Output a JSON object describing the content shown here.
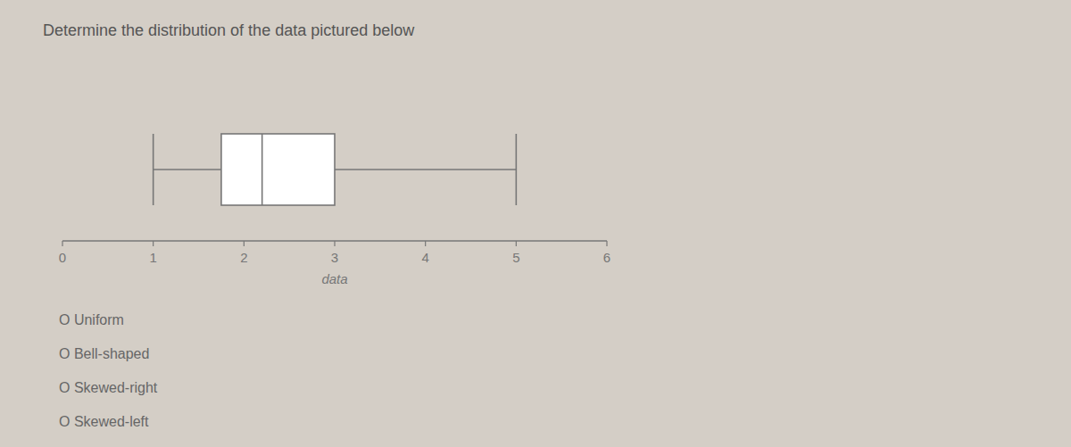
{
  "chart_data": {
    "type": "box",
    "title": "Determine the distribution of the data pictured below",
    "xlabel": "data",
    "xlim": [
      0,
      6
    ],
    "xticks": [
      0,
      1,
      2,
      3,
      4,
      5,
      6
    ],
    "box": {
      "whisker_low": 1.0,
      "q1": 1.75,
      "median": 2.2,
      "q3": 3.0,
      "whisker_high": 5.0
    },
    "color": "#777777",
    "grid": false,
    "tick_labels": "x",
    "annotations": [
      "O Uniform",
      "O Bell-shaped",
      "O Skewed-right",
      "O Skewed-left"
    ]
  }
}
